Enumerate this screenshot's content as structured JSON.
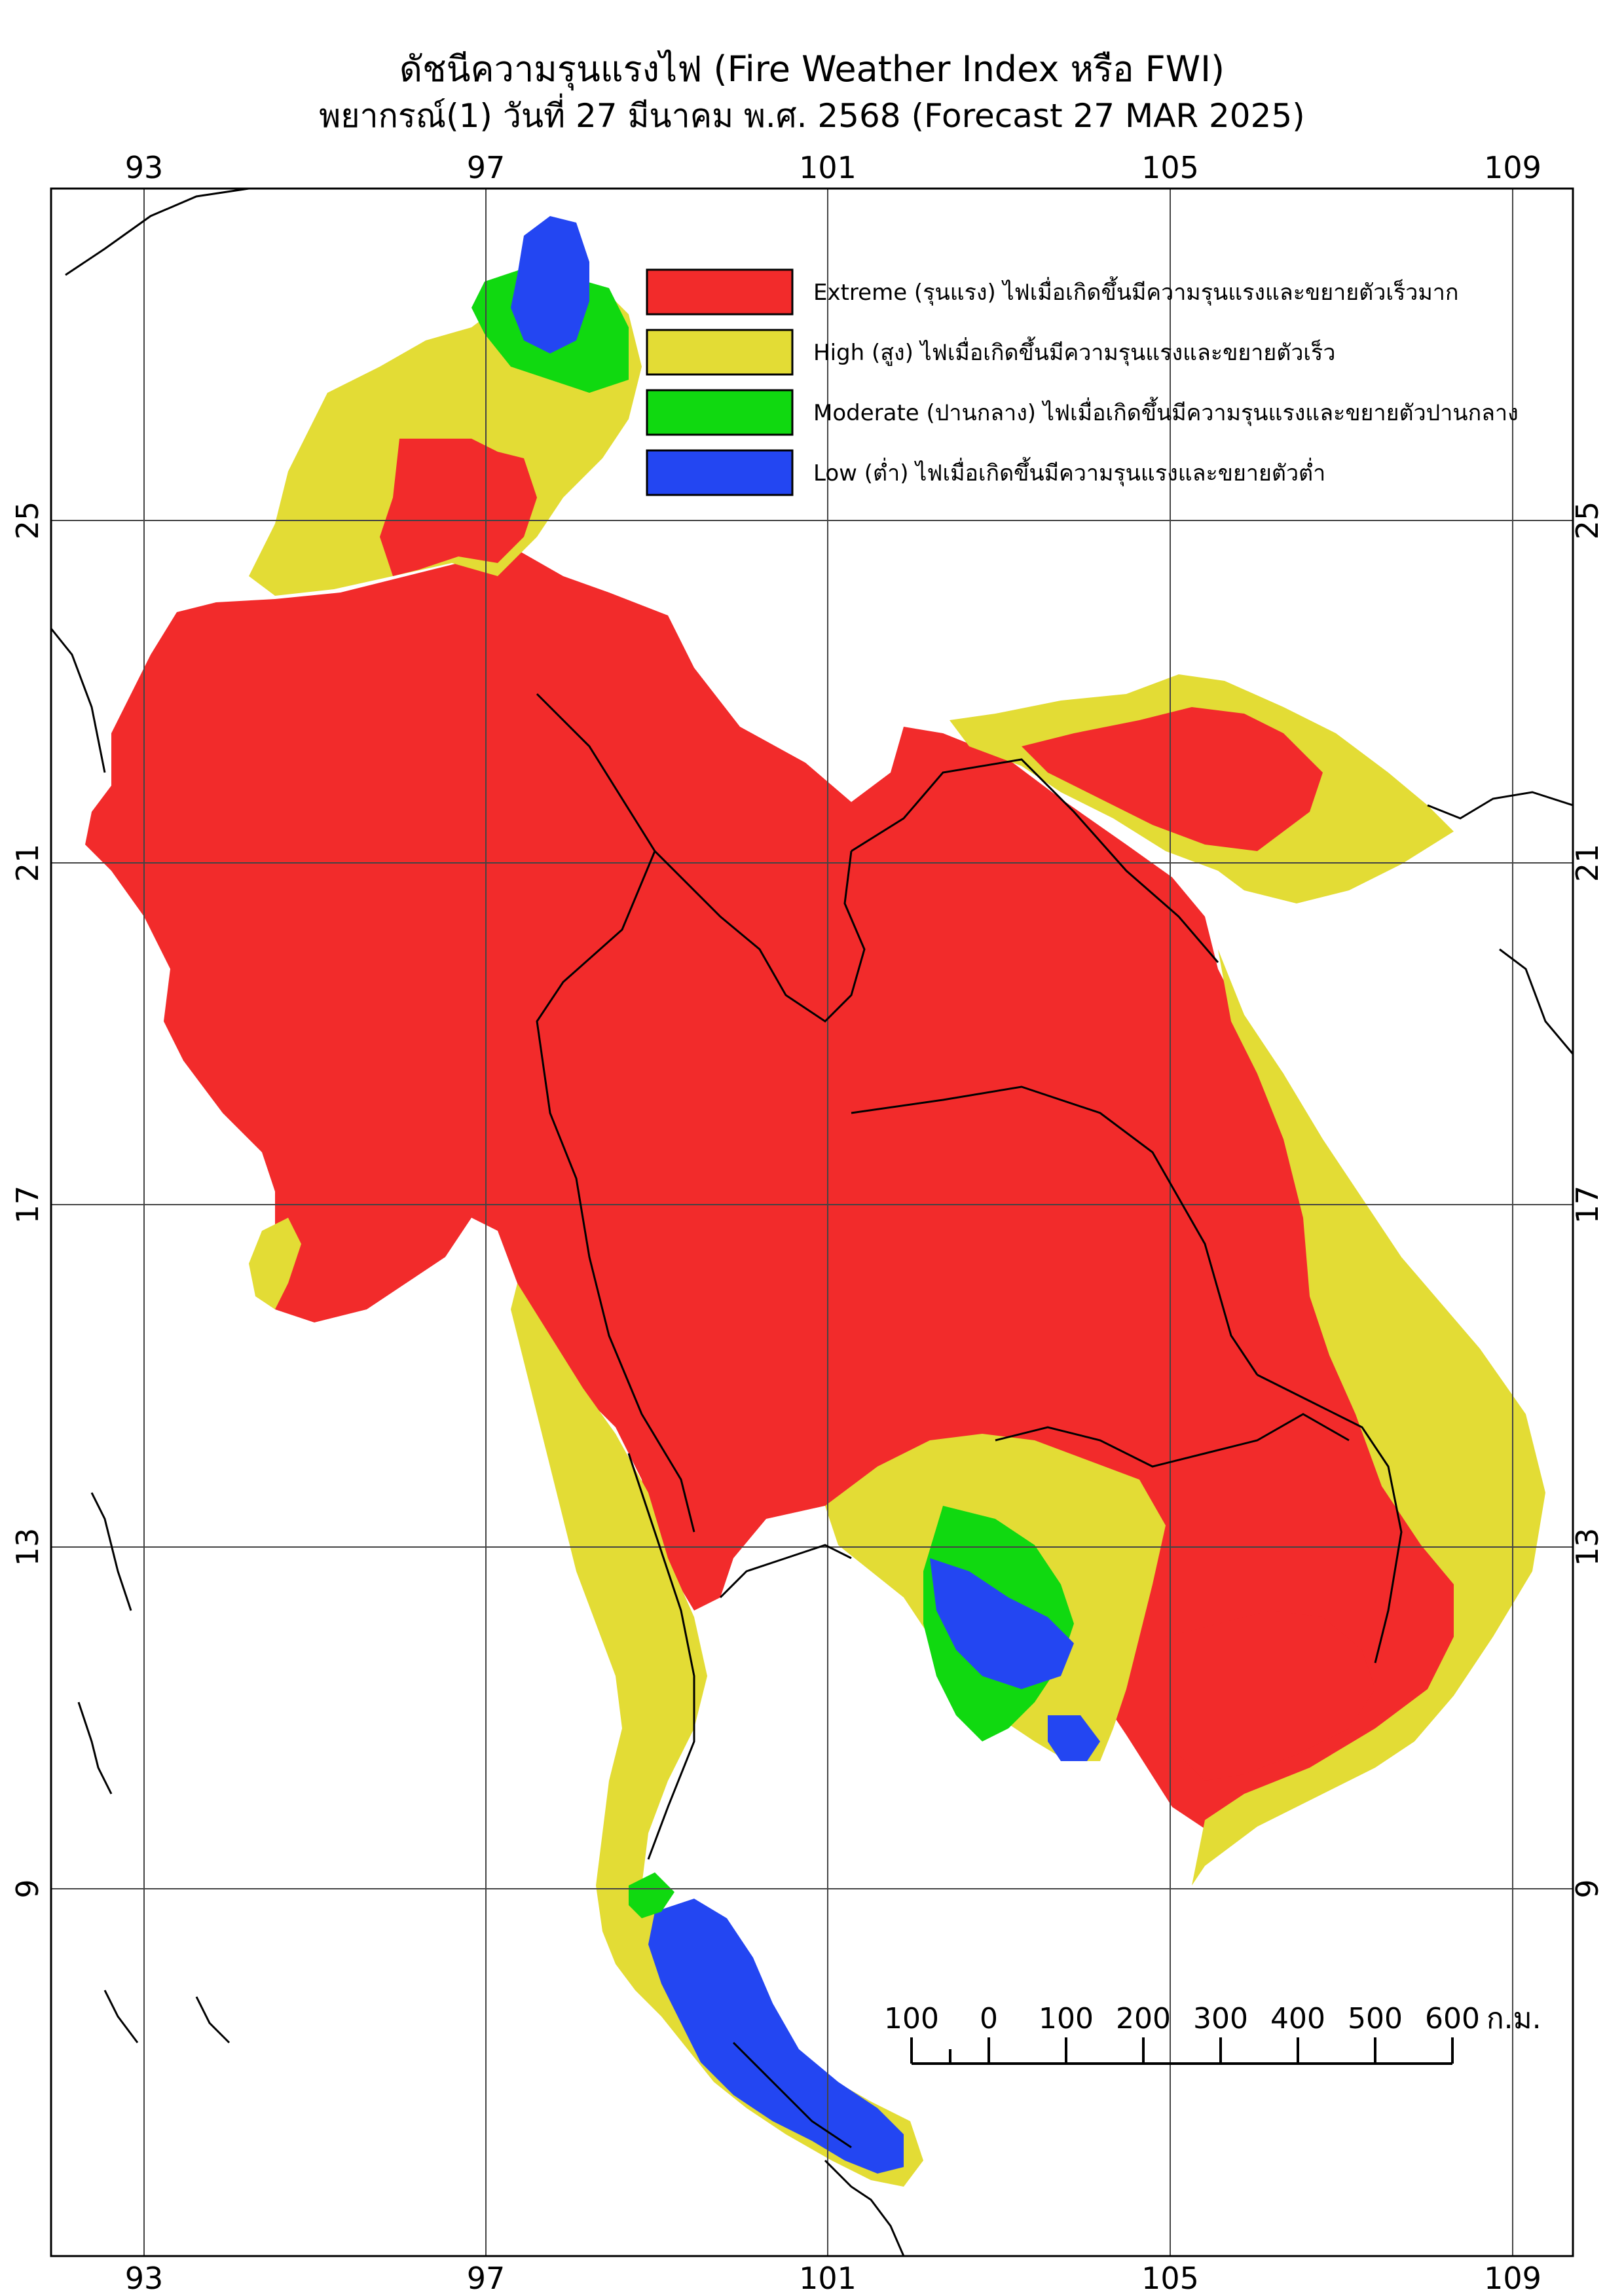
{
  "title": "ดัชนีความรุนแรงไฟ (Fire Weather Index หรือ FWI)",
  "subtitle": "พยากรณ์(1) วันที่ 27 มีนาคม พ.ศ. 2568 (Forecast 27 MAR 2025)",
  "axes": {
    "lon_ticks": [
      "93",
      "97",
      "101",
      "105",
      "109"
    ],
    "lat_ticks": [
      "25",
      "21",
      "17",
      "13",
      "9"
    ]
  },
  "legend": [
    {
      "label": "Extreme (รุนแรง) ไฟเมื่อเกิดขึ้นมีความรุนแรงและขยายตัวเร็วมาก",
      "color": "#f22b2b"
    },
    {
      "label": "High (สูง) ไฟเมื่อเกิดขึ้นมีความรุนแรงและขยายตัวเร็ว",
      "color": "#e3dc35"
    },
    {
      "label": "Moderate (ปานกลาง) ไฟเมื่อเกิดขึ้นมีความรุนแรงและขยายตัวปานกลาง",
      "color": "#10d910"
    },
    {
      "label": "Low (ต่ำ) ไฟเมื่อเกิดขึ้นมีความรุนแรงและขยายตัวต่ำ",
      "color": "#2346f2"
    }
  ],
  "scale_bar": {
    "ticks": [
      "100",
      "0",
      "100",
      "200",
      "300",
      "400",
      "500",
      "600"
    ],
    "unit": "ก.ม."
  }
}
